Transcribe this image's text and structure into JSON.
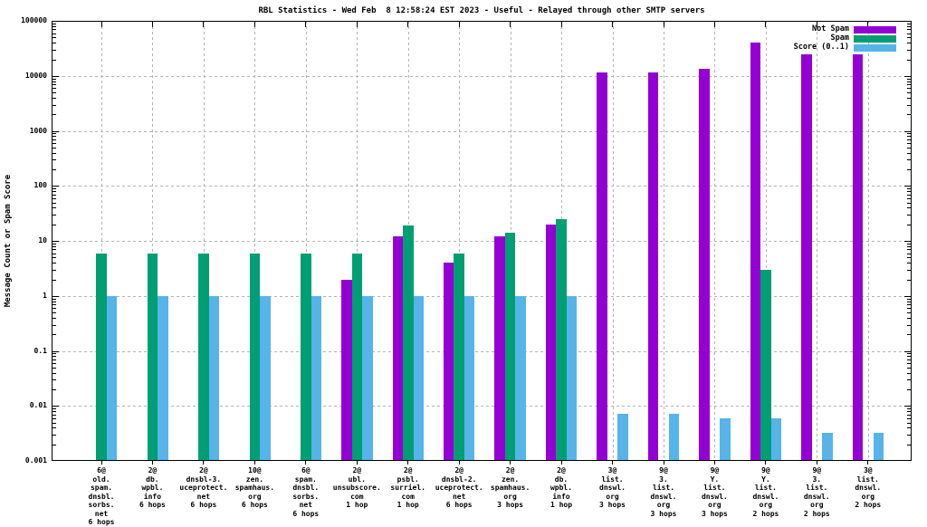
{
  "title": "RBL Statistics - Wed Feb  8 12:58:24 EST 2023 - Useful - Relayed through other SMTP servers",
  "y_axis_label": "Message Count or Spam Score",
  "colors": {
    "not_spam": "#9400d3",
    "spam": "#009e73",
    "score": "#56b4e9",
    "grid": "#b4b4b4",
    "border": "#000000"
  },
  "legend": [
    {
      "label": "Not Spam",
      "color_key": "not_spam"
    },
    {
      "label": "Spam",
      "color_key": "spam"
    },
    {
      "label": "Score (0..1)",
      "color_key": "score"
    }
  ],
  "chart_data": {
    "type": "bar",
    "title": "RBL Statistics - Wed Feb  8 12:58:24 EST 2023 - Useful - Relayed through other SMTP servers",
    "ylabel": "Message Count or Spam Score",
    "xlabel": "",
    "y_scale": "log",
    "ylim": [
      0.001,
      100000
    ],
    "grid": true,
    "legend_position": "top-right",
    "y_ticks": [
      "100000",
      "10000",
      "1000",
      "100",
      "10",
      "1",
      "0.1",
      "0.01",
      "0.001"
    ],
    "categories": [
      {
        "label_lines": [
          "6@",
          "old.",
          "spam.",
          "dnsbl.",
          "sorbs.",
          "net",
          "6 hops"
        ]
      },
      {
        "label_lines": [
          "2@",
          "db.",
          "wpbl.",
          "info",
          "6 hops"
        ]
      },
      {
        "label_lines": [
          "2@",
          "dnsbl-3.",
          "uceprotect.",
          "net",
          "6 hops"
        ]
      },
      {
        "label_lines": [
          "10@",
          "zen.",
          "spamhaus.",
          "org",
          "6 hops"
        ]
      },
      {
        "label_lines": [
          "6@",
          "spam.",
          "dnsbl.",
          "sorbs.",
          "net",
          "6 hops"
        ]
      },
      {
        "label_lines": [
          "2@",
          "ubl.",
          "unsubscore.",
          "com",
          "1 hop"
        ]
      },
      {
        "label_lines": [
          "2@",
          "psbl.",
          "surriel.",
          "com",
          "1 hop"
        ]
      },
      {
        "label_lines": [
          "2@",
          "dnsbl-2.",
          "uceprotect.",
          "net",
          "6 hops"
        ]
      },
      {
        "label_lines": [
          "2@",
          "zen.",
          "spamhaus.",
          "org",
          "3 hops"
        ]
      },
      {
        "label_lines": [
          "2@",
          "db.",
          "wpbl.",
          "info",
          "1 hop"
        ]
      },
      {
        "label_lines": [
          "3@",
          "list.",
          "dnswl.",
          "org",
          "3 hops"
        ]
      },
      {
        "label_lines": [
          "9@",
          "3.",
          "list.",
          "dnswl.",
          "org",
          "3 hops"
        ]
      },
      {
        "label_lines": [
          "9@",
          "Y.",
          "list.",
          "dnswl.",
          "org",
          "3 hops"
        ]
      },
      {
        "label_lines": [
          "9@",
          "Y.",
          "list.",
          "dnswl.",
          "org",
          "2 hops"
        ]
      },
      {
        "label_lines": [
          "9@",
          "3.",
          "list.",
          "dnswl.",
          "org",
          "2 hops"
        ]
      },
      {
        "label_lines": [
          "3@",
          "list.",
          "dnswl.",
          "org",
          "2 hops"
        ]
      }
    ],
    "series": [
      {
        "name": "Not Spam",
        "color_key": "not_spam",
        "values": [
          null,
          null,
          null,
          null,
          null,
          2,
          12,
          4,
          12,
          20,
          11500,
          11500,
          13500,
          40000,
          25000,
          25000
        ]
      },
      {
        "name": "Spam",
        "color_key": "spam",
        "values": [
          6,
          6,
          6,
          6,
          6,
          6,
          19,
          6,
          14,
          25,
          null,
          null,
          null,
          3,
          null,
          null
        ]
      },
      {
        "name": "Score (0..1)",
        "color_key": "score",
        "values": [
          1,
          1,
          1,
          1,
          1,
          1,
          1,
          1,
          1,
          1,
          0.0072,
          0.0072,
          0.006,
          0.006,
          0.0033,
          0.0033
        ]
      }
    ]
  }
}
